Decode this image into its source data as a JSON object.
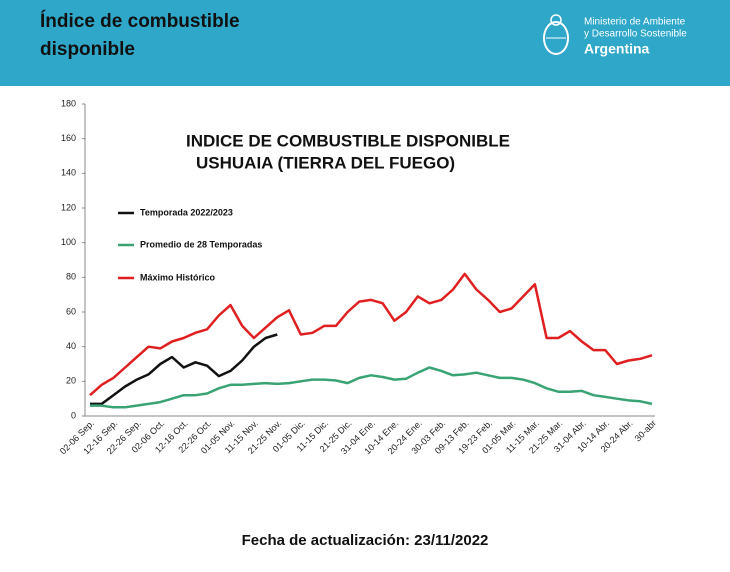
{
  "header": {
    "title_lines": [
      "Índice de combustible",
      "disponible"
    ],
    "logo_lines": [
      "Ministerio de Ambiente",
      "y Desarrollo Sostenible",
      "Argentina"
    ]
  },
  "footer": "Fecha de actualización: 23/11/2022",
  "chart_data": {
    "type": "line",
    "title": "INDICE DE COMBUSTIBLE DISPONIBLE",
    "subtitle": "USHUAIA (TIERRA DEL FUEGO)",
    "categories": [
      "02-06 Sep.",
      null,
      "12-16 Sep.",
      null,
      "22-26 Sep.",
      null,
      "02-06 Oct.",
      null,
      "12-16 Oct.",
      null,
      "22-26 Oct.",
      null,
      "01-05 Nov.",
      null,
      "11-15 Nov.",
      null,
      "21-25 Nov.",
      null,
      "01-05 Dic.",
      null,
      "11-15 Dic.",
      null,
      "21-25 Dic.",
      null,
      "31-04 Ene.",
      null,
      "10-14 Ene.",
      null,
      "20-24 Ene.",
      null,
      "30-03 Feb.",
      null,
      "09-13 Feb.",
      null,
      "19-23 Feb.",
      null,
      "01-05 Mar.",
      null,
      "11-15 Mar.",
      null,
      "21-25 Mar.",
      null,
      "31-04 Abr.",
      null,
      "10-14 Abr.",
      null,
      "20-24 Abr.",
      null,
      "30-abr"
    ],
    "series": [
      {
        "name": "Temporada 2022/2023",
        "color": "#111111",
        "values": [
          7,
          7,
          12,
          17,
          21,
          24,
          30,
          34,
          28,
          31,
          29,
          23,
          26,
          32,
          40,
          45,
          47,
          null,
          null,
          null,
          null,
          null,
          null,
          null,
          null,
          null,
          null,
          null,
          null,
          null,
          null,
          null,
          null,
          null,
          null,
          null,
          null,
          null,
          null,
          null,
          null,
          null,
          null,
          null,
          null,
          null,
          null,
          null,
          null
        ]
      },
      {
        "name": "Promedio de 28 Temporadas",
        "color": "#3aa374",
        "values": [
          6,
          6,
          5,
          5,
          6,
          7,
          8,
          10,
          12,
          12,
          13,
          16,
          18,
          18,
          18.5,
          19,
          18.5,
          19,
          20,
          21,
          21,
          20.5,
          19,
          22,
          23.5,
          22.5,
          21,
          21.5,
          25,
          28,
          26,
          23.5,
          24,
          25,
          23.5,
          22,
          22,
          21,
          19,
          16,
          14,
          14,
          14.5,
          12,
          11,
          10,
          9,
          8.5,
          7
        ]
      },
      {
        "name": "Máximo Histórico",
        "color": "#e02020",
        "values": [
          12,
          18,
          22,
          28,
          34,
          40,
          39,
          43,
          45,
          48,
          50,
          58,
          64,
          52,
          45,
          51,
          57,
          61,
          47,
          48,
          52,
          52,
          60,
          66,
          67,
          65,
          55,
          60,
          69,
          65,
          67,
          73,
          82,
          73,
          67,
          60,
          62,
          69,
          76,
          45,
          45,
          49,
          43,
          38,
          38,
          30,
          32,
          33,
          35
        ]
      }
    ],
    "ylim": [
      0,
      180
    ],
    "yticks": [
      0,
      20,
      40,
      60,
      80,
      100,
      120,
      140,
      160,
      180
    ],
    "grid": false,
    "legend": "upper-left"
  }
}
